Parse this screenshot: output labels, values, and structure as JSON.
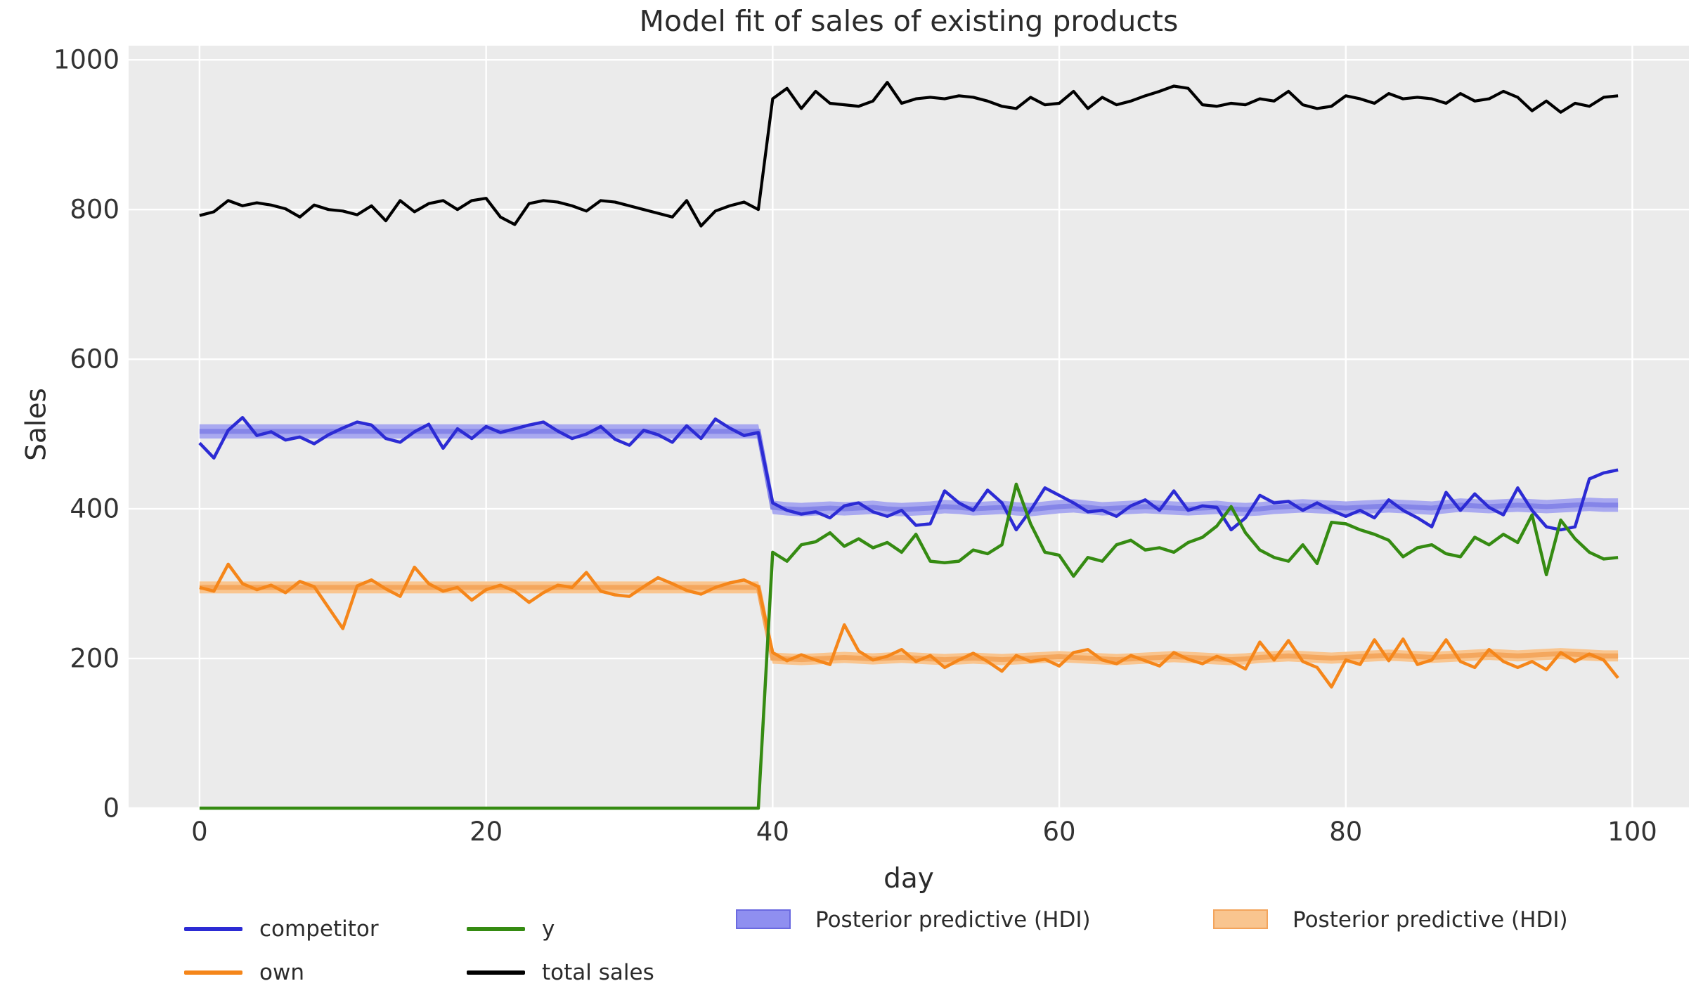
{
  "title": "Model fit of sales of existing products",
  "axes": {
    "xlabel": "day",
    "ylabel": "Sales",
    "x_ticks": [
      0,
      20,
      40,
      60,
      80,
      100
    ],
    "y_ticks": [
      0,
      200,
      400,
      600,
      800,
      1000
    ],
    "xlim": [
      -4.95,
      103.95
    ],
    "ylim": [
      0,
      1019
    ],
    "grid": true
  },
  "colors": {
    "plot_bg": "#ebebeb",
    "grid": "#ffffff",
    "text": "#333333"
  },
  "legend": {
    "entries": [
      {
        "label": "competitor",
        "type": "line",
        "color": "#2c2bd4"
      },
      {
        "label": "own",
        "type": "line",
        "color": "#f5861a"
      },
      {
        "label": "y",
        "type": "line",
        "color": "#358b12"
      },
      {
        "label": "total sales",
        "type": "line",
        "color": "#000000"
      },
      {
        "label": "Posterior predictive (HDI)",
        "type": "patch",
        "color": "#8f8ff0",
        "border": "#6a69e0"
      },
      {
        "label": "Posterior predictive (HDI)",
        "type": "patch",
        "color": "#f9c58f",
        "border": "#f3a45c"
      }
    ]
  },
  "chart_data": {
    "type": "line",
    "x": {
      "start": 0,
      "step": 1,
      "n": 100
    },
    "series": [
      {
        "name": "competitor",
        "color": "#2c2bd4",
        "width": 4.5,
        "values": [
          488,
          468,
          505,
          522,
          498,
          503,
          492,
          496,
          487,
          499,
          508,
          516,
          512,
          494,
          489,
          503,
          513,
          481,
          507,
          494,
          510,
          502,
          507,
          512,
          516,
          504,
          494,
          500,
          510,
          493,
          485,
          505,
          499,
          489,
          511,
          494,
          520,
          508,
          498,
          502,
          408,
          398,
          393,
          396,
          388,
          404,
          408,
          396,
          390,
          398,
          378,
          380,
          424,
          408,
          398,
          425,
          408,
          372,
          398,
          428,
          418,
          408,
          396,
          398,
          390,
          404,
          412,
          398,
          424,
          398,
          404,
          402,
          372,
          388,
          418,
          408,
          410,
          398,
          408,
          398,
          390,
          398,
          388,
          412,
          398,
          388,
          376,
          422,
          398,
          420,
          402,
          392,
          428,
          398,
          376,
          372,
          376,
          440,
          448,
          452
        ]
      },
      {
        "name": "own",
        "color": "#f5861a",
        "width": 4.5,
        "values": [
          295,
          290,
          326,
          300,
          292,
          298,
          288,
          303,
          296,
          268,
          240,
          297,
          305,
          293,
          283,
          322,
          300,
          290,
          295,
          278,
          292,
          298,
          290,
          275,
          288,
          298,
          295,
          315,
          290,
          285,
          283,
          296,
          308,
          300,
          291,
          286,
          295,
          301,
          305,
          296,
          208,
          197,
          205,
          198,
          192,
          245,
          210,
          198,
          203,
          212,
          196,
          204,
          188,
          198,
          207,
          196,
          183,
          204,
          196,
          199,
          190,
          208,
          212,
          198,
          193,
          204,
          197,
          190,
          208,
          199,
          193,
          203,
          196,
          186,
          222,
          198,
          224,
          196,
          188,
          162,
          198,
          192,
          225,
          197,
          226,
          192,
          198,
          225,
          196,
          188,
          212,
          196,
          188,
          196,
          185,
          208,
          196,
          206,
          198,
          174
        ]
      },
      {
        "name": "y",
        "color": "#358b12",
        "width": 4.5,
        "values": [
          0,
          0,
          0,
          0,
          0,
          0,
          0,
          0,
          0,
          0,
          0,
          0,
          0,
          0,
          0,
          0,
          0,
          0,
          0,
          0,
          0,
          0,
          0,
          0,
          0,
          0,
          0,
          0,
          0,
          0,
          0,
          0,
          0,
          0,
          0,
          0,
          0,
          0,
          0,
          0,
          342,
          330,
          352,
          356,
          368,
          350,
          360,
          348,
          355,
          342,
          366,
          330,
          328,
          330,
          345,
          340,
          352,
          433,
          380,
          342,
          338,
          310,
          335,
          330,
          352,
          358,
          345,
          348,
          342,
          355,
          362,
          377,
          403,
          368,
          345,
          335,
          330,
          352,
          327,
          382,
          380,
          372,
          366,
          358,
          336,
          348,
          352,
          340,
          336,
          362,
          352,
          366,
          355,
          392,
          312,
          385,
          360,
          342,
          333,
          335
        ]
      },
      {
        "name": "total sales",
        "color": "#000000",
        "width": 4.2,
        "values": [
          792,
          797,
          812,
          805,
          809,
          806,
          801,
          790,
          806,
          800,
          798,
          793,
          805,
          785,
          812,
          797,
          808,
          812,
          800,
          812,
          815,
          790,
          780,
          808,
          812,
          810,
          805,
          798,
          812,
          810,
          805,
          800,
          795,
          790,
          812,
          778,
          798,
          805,
          810,
          800,
          948,
          962,
          935,
          958,
          942,
          940,
          938,
          945,
          970,
          942,
          948,
          950,
          948,
          952,
          950,
          945,
          938,
          935,
          950,
          940,
          942,
          958,
          935,
          950,
          940,
          945,
          952,
          958,
          965,
          962,
          940,
          938,
          942,
          940,
          948,
          945,
          958,
          940,
          935,
          938,
          952,
          948,
          942,
          955,
          948,
          950,
          948,
          942,
          955,
          945,
          948,
          958,
          950,
          932,
          945,
          930,
          942,
          938,
          950,
          952
        ]
      }
    ],
    "bands": [
      {
        "name": "Posterior predictive (HDI) competitor",
        "fill": "#a9a9f0",
        "stripe": "#8585e8",
        "lo": [
          494,
          494,
          494,
          494,
          494,
          494,
          494,
          494,
          494,
          494,
          494,
          494,
          494,
          494,
          494,
          494,
          494,
          494,
          494,
          494,
          494,
          494,
          494,
          494,
          494,
          494,
          494,
          494,
          494,
          494,
          494,
          494,
          494,
          494,
          494,
          494,
          494,
          494,
          494,
          494,
          393,
          391,
          390,
          391,
          392,
          391,
          392,
          393,
          391,
          390,
          391,
          392,
          394,
          393,
          391,
          392,
          393,
          391,
          390,
          392,
          394,
          395,
          393,
          391,
          392,
          393,
          394,
          393,
          392,
          391,
          392,
          393,
          391,
          390,
          391,
          393,
          394,
          395,
          394,
          393,
          392,
          393,
          394,
          395,
          394,
          393,
          392,
          394,
          396,
          395,
          394,
          395,
          396,
          395,
          394,
          395,
          396,
          397,
          396,
          396
        ],
        "hi": [
          513,
          513,
          513,
          513,
          513,
          513,
          513,
          513,
          513,
          513,
          513,
          513,
          513,
          513,
          513,
          513,
          513,
          513,
          513,
          513,
          513,
          513,
          513,
          513,
          513,
          513,
          513,
          513,
          513,
          513,
          513,
          513,
          513,
          513,
          513,
          513,
          513,
          513,
          513,
          513,
          411,
          409,
          408,
          409,
          410,
          409,
          410,
          411,
          409,
          408,
          409,
          410,
          412,
          411,
          409,
          410,
          411,
          409,
          408,
          410,
          412,
          413,
          411,
          409,
          410,
          411,
          412,
          411,
          410,
          409,
          410,
          411,
          409,
          408,
          409,
          411,
          412,
          413,
          412,
          411,
          410,
          411,
          412,
          413,
          412,
          411,
          410,
          412,
          414,
          413,
          412,
          413,
          414,
          413,
          412,
          413,
          414,
          415,
          414,
          414
        ]
      },
      {
        "name": "Posterior predictive (HDI) own",
        "fill": "#f9c58f",
        "stripe": "#f4a75e",
        "lo": [
          287,
          287,
          287,
          287,
          287,
          287,
          287,
          287,
          287,
          287,
          287,
          287,
          287,
          287,
          287,
          287,
          287,
          287,
          287,
          287,
          287,
          287,
          287,
          287,
          287,
          287,
          287,
          287,
          287,
          287,
          287,
          287,
          287,
          287,
          287,
          287,
          287,
          287,
          287,
          287,
          193,
          192,
          191,
          192,
          193,
          194,
          193,
          192,
          193,
          194,
          193,
          192,
          191,
          192,
          193,
          192,
          191,
          192,
          193,
          194,
          195,
          194,
          193,
          192,
          191,
          192,
          193,
          194,
          195,
          194,
          193,
          192,
          191,
          192,
          194,
          195,
          196,
          195,
          194,
          193,
          194,
          195,
          196,
          197,
          196,
          195,
          194,
          195,
          196,
          197,
          198,
          197,
          196,
          197,
          198,
          199,
          198,
          197,
          196,
          196
        ],
        "hi": [
          303,
          303,
          303,
          303,
          303,
          303,
          303,
          303,
          303,
          303,
          303,
          303,
          303,
          303,
          303,
          303,
          303,
          303,
          303,
          303,
          303,
          303,
          303,
          303,
          303,
          303,
          303,
          303,
          303,
          303,
          303,
          303,
          303,
          303,
          303,
          303,
          303,
          303,
          303,
          303,
          208,
          207,
          206,
          207,
          208,
          209,
          208,
          207,
          208,
          209,
          208,
          207,
          206,
          207,
          208,
          207,
          206,
          207,
          208,
          209,
          210,
          209,
          208,
          207,
          206,
          207,
          208,
          209,
          210,
          209,
          208,
          207,
          206,
          207,
          209,
          210,
          211,
          210,
          209,
          208,
          209,
          210,
          211,
          212,
          211,
          210,
          209,
          210,
          211,
          212,
          213,
          212,
          211,
          212,
          213,
          214,
          213,
          212,
          211,
          211
        ]
      }
    ]
  }
}
